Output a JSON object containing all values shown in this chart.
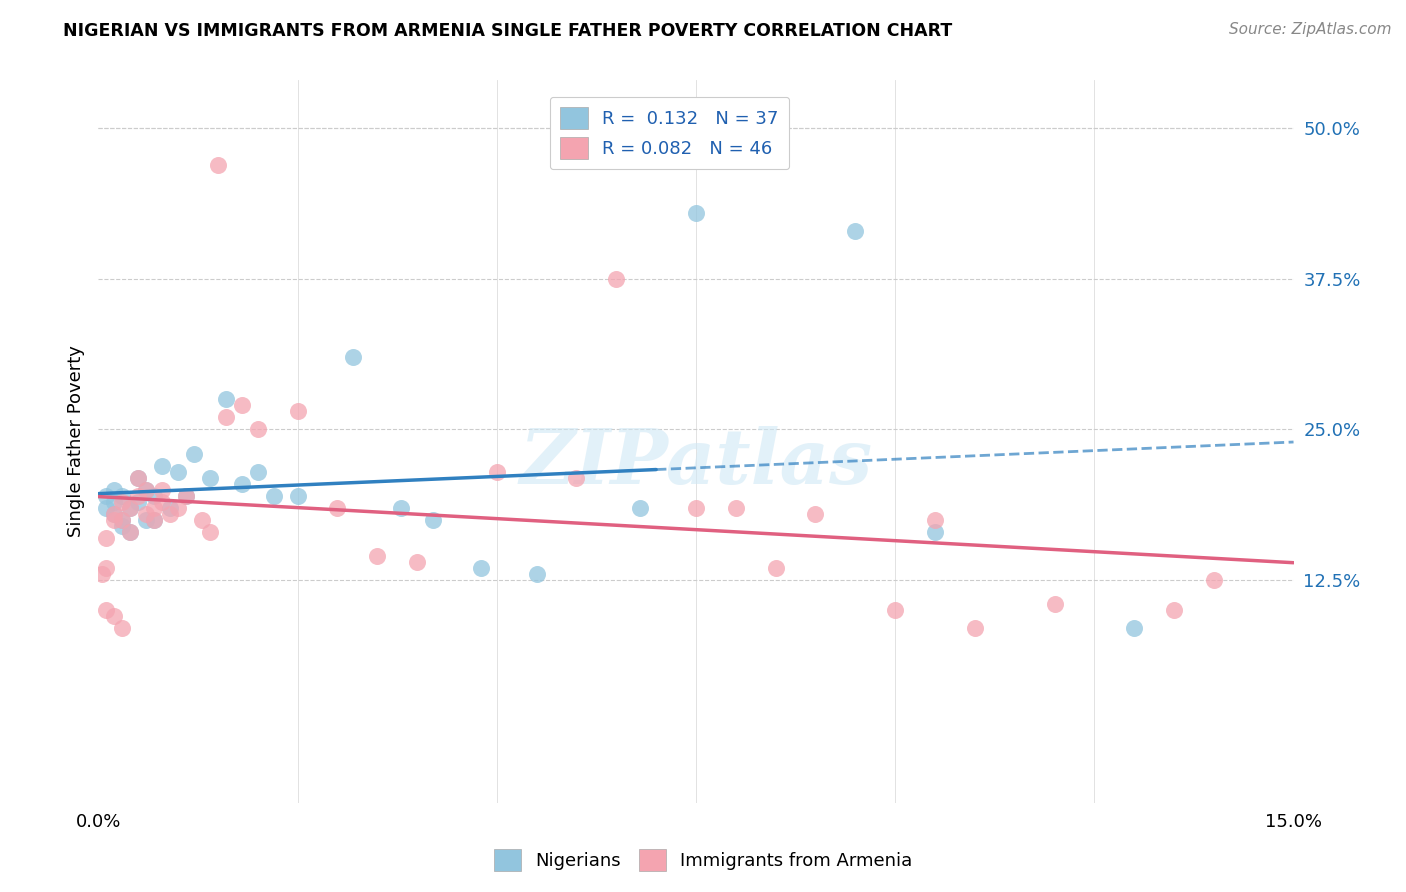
{
  "title": "NIGERIAN VS IMMIGRANTS FROM ARMENIA SINGLE FATHER POVERTY CORRELATION CHART",
  "source": "Source: ZipAtlas.com",
  "ylabel": "Single Father Poverty",
  "blue_color": "#92c5de",
  "pink_color": "#f4a4b0",
  "blue_line_color": "#3080c0",
  "pink_line_color": "#e06080",
  "blue_dash_color": "#7aaac8",
  "xlim": [
    0.0,
    0.15
  ],
  "ylim": [
    -0.06,
    0.54
  ],
  "ytick_vals": [
    0.125,
    0.25,
    0.375,
    0.5
  ],
  "ytick_labels": [
    "12.5%",
    "25.0%",
    "37.5%",
    "50.0%"
  ],
  "xtick_vals": [
    0.0,
    0.15
  ],
  "xtick_labels": [
    "0.0%",
    "15.0%"
  ],
  "nigerians_x": [
    0.001,
    0.001,
    0.002,
    0.002,
    0.002,
    0.003,
    0.003,
    0.003,
    0.004,
    0.004,
    0.005,
    0.005,
    0.006,
    0.006,
    0.007,
    0.007,
    0.008,
    0.009,
    0.01,
    0.011,
    0.012,
    0.014,
    0.016,
    0.018,
    0.02,
    0.022,
    0.025,
    0.032,
    0.038,
    0.042,
    0.048,
    0.055,
    0.068,
    0.075,
    0.095,
    0.105,
    0.13
  ],
  "nigerians_y": [
    0.195,
    0.185,
    0.19,
    0.18,
    0.2,
    0.17,
    0.195,
    0.175,
    0.185,
    0.165,
    0.19,
    0.21,
    0.175,
    0.2,
    0.195,
    0.175,
    0.22,
    0.185,
    0.215,
    0.195,
    0.23,
    0.21,
    0.275,
    0.205,
    0.215,
    0.195,
    0.195,
    0.31,
    0.185,
    0.175,
    0.135,
    0.13,
    0.185,
    0.43,
    0.415,
    0.165,
    0.085
  ],
  "armenia_x": [
    0.0005,
    0.001,
    0.001,
    0.001,
    0.002,
    0.002,
    0.002,
    0.003,
    0.003,
    0.003,
    0.004,
    0.004,
    0.005,
    0.005,
    0.006,
    0.006,
    0.007,
    0.007,
    0.008,
    0.008,
    0.009,
    0.01,
    0.011,
    0.013,
    0.014,
    0.015,
    0.016,
    0.018,
    0.02,
    0.025,
    0.03,
    0.035,
    0.04,
    0.05,
    0.06,
    0.065,
    0.075,
    0.08,
    0.085,
    0.09,
    0.1,
    0.105,
    0.11,
    0.12,
    0.135,
    0.14
  ],
  "armenia_y": [
    0.13,
    0.135,
    0.16,
    0.1,
    0.175,
    0.18,
    0.095,
    0.19,
    0.175,
    0.085,
    0.185,
    0.165,
    0.21,
    0.195,
    0.2,
    0.18,
    0.185,
    0.175,
    0.2,
    0.19,
    0.18,
    0.185,
    0.195,
    0.175,
    0.165,
    0.47,
    0.26,
    0.27,
    0.25,
    0.265,
    0.185,
    0.145,
    0.14,
    0.215,
    0.21,
    0.375,
    0.185,
    0.185,
    0.135,
    0.18,
    0.1,
    0.175,
    0.085,
    0.105,
    0.1,
    0.125
  ],
  "solid_line_xmax": 0.07,
  "legend_r1": "R=  0.132   N = 37",
  "legend_r2": "R = 0.082   N = 46"
}
